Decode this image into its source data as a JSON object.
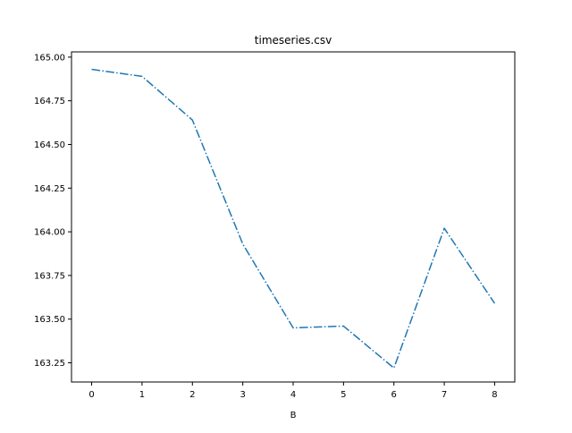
{
  "chart_data": {
    "type": "line",
    "title": "timeseries.csv",
    "xlabel": "B",
    "ylabel": "",
    "x": [
      0,
      1,
      2,
      3,
      4,
      5,
      6,
      7,
      8
    ],
    "series": [
      {
        "values": [
          164.93,
          164.89,
          164.64,
          163.93,
          163.45,
          163.46,
          163.22,
          164.02,
          163.59
        ]
      }
    ],
    "xticks": [
      "0",
      "1",
      "2",
      "3",
      "4",
      "5",
      "6",
      "7",
      "8"
    ],
    "yticks": [
      "163.25",
      "163.50",
      "163.75",
      "164.00",
      "164.25",
      "164.50",
      "164.75",
      "165.00"
    ],
    "xlim": [
      -0.4,
      8.4
    ],
    "ylim": [
      163.14,
      165.03
    ],
    "line_style": "dash-dot",
    "line_color": "#1f77b4",
    "grid": false,
    "legend": "none"
  }
}
